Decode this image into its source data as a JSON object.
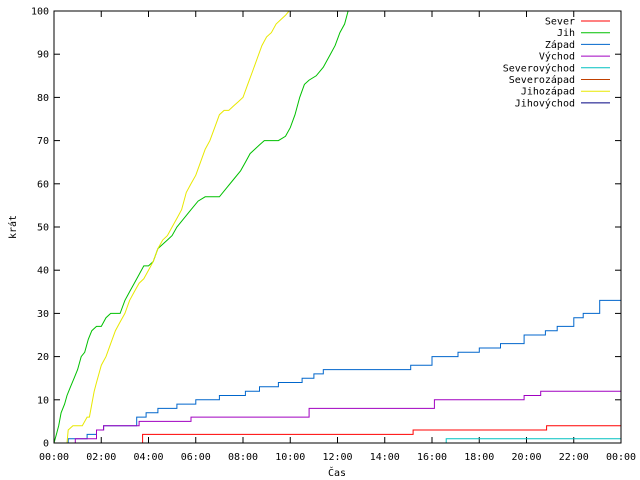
{
  "chart_data": {
    "type": "line",
    "title": "",
    "xlabel": "Čas",
    "ylabel": "krát",
    "xlim": [
      0,
      24
    ],
    "ylim": [
      0,
      100
    ],
    "x_unit": "hours",
    "x_ticks": [
      {
        "value": 0,
        "label": "00:00"
      },
      {
        "value": 2,
        "label": "02:00"
      },
      {
        "value": 4,
        "label": "04:00"
      },
      {
        "value": 6,
        "label": "06:00"
      },
      {
        "value": 8,
        "label": "08:00"
      },
      {
        "value": 10,
        "label": "10:00"
      },
      {
        "value": 12,
        "label": "12:00"
      },
      {
        "value": 14,
        "label": "14:00"
      },
      {
        "value": 16,
        "label": "16:00"
      },
      {
        "value": 18,
        "label": "18:00"
      },
      {
        "value": 20,
        "label": "20:00"
      },
      {
        "value": 22,
        "label": "22:00"
      },
      {
        "value": 24,
        "label": "00:00"
      }
    ],
    "y_ticks": [
      0,
      10,
      20,
      30,
      40,
      50,
      60,
      70,
      80,
      90,
      100
    ],
    "grid": false,
    "legend_position": "top-right",
    "series": [
      {
        "name": "Sever",
        "color": "#ff0000",
        "x": [
          0,
          3.75,
          3.75,
          15.2,
          15.2,
          20.85,
          20.85,
          24
        ],
        "y": [
          0,
          0,
          2,
          2,
          3,
          3,
          4,
          4
        ]
      },
      {
        "name": "Jih",
        "color": "#00c000",
        "x": [
          0,
          0.1,
          0.2,
          0.3,
          0.45,
          0.55,
          0.7,
          0.85,
          1.0,
          1.15,
          1.3,
          1.45,
          1.6,
          1.8,
          2.0,
          2.2,
          2.4,
          2.6,
          2.8,
          3.0,
          3.2,
          3.4,
          3.6,
          3.8,
          4.0,
          4.2,
          4.4,
          4.6,
          4.8,
          5.0,
          5.2,
          5.5,
          5.8,
          6.1,
          6.4,
          6.7,
          7.0,
          7.3,
          7.6,
          7.9,
          8.1,
          8.3,
          8.5,
          8.7,
          8.9,
          9.2,
          9.5,
          9.8,
          10.0,
          10.2,
          10.4,
          10.6,
          10.8,
          11.1,
          11.4,
          11.7,
          11.9,
          12.1,
          12.3,
          12.45
        ],
        "y": [
          0,
          2,
          4,
          7,
          9,
          11,
          13,
          15,
          17,
          20,
          21,
          24,
          26,
          27,
          27,
          29,
          30,
          30,
          30,
          33,
          35,
          37,
          39,
          41,
          41,
          42,
          45,
          46,
          47,
          48,
          50,
          52,
          54,
          56,
          57,
          57,
          57,
          59,
          61,
          63,
          65,
          67,
          68,
          69,
          70,
          70,
          70,
          71,
          73,
          76,
          80,
          83,
          84,
          85,
          87,
          90,
          92,
          95,
          97,
          100
        ]
      },
      {
        "name": "Západ",
        "color": "#0066cc",
        "x": [
          0,
          0.6,
          0.6,
          1.4,
          1.4,
          1.8,
          1.8,
          2.1,
          2.1,
          3.5,
          3.5,
          3.9,
          3.9,
          4.4,
          4.4,
          5.2,
          5.2,
          6.0,
          6.0,
          7.0,
          7.0,
          8.1,
          8.1,
          8.7,
          8.7,
          9.5,
          9.5,
          10.5,
          10.5,
          11.0,
          11.0,
          11.4,
          11.4,
          15.1,
          15.1,
          16.0,
          16.0,
          17.1,
          17.1,
          18.0,
          18.0,
          18.9,
          18.9,
          19.9,
          19.9,
          20.8,
          20.8,
          21.3,
          21.3,
          22.0,
          22.0,
          22.4,
          22.4,
          23.1,
          23.1,
          24
        ],
        "y": [
          0,
          0,
          1,
          1,
          2,
          2,
          3,
          3,
          4,
          4,
          6,
          6,
          7,
          7,
          8,
          8,
          9,
          9,
          10,
          10,
          11,
          11,
          12,
          12,
          13,
          13,
          14,
          14,
          15,
          15,
          16,
          16,
          17,
          17,
          18,
          18,
          20,
          20,
          21,
          21,
          22,
          22,
          23,
          23,
          25,
          25,
          26,
          26,
          27,
          27,
          29,
          29,
          30,
          30,
          33,
          33
        ]
      },
      {
        "name": "Východ",
        "color": "#a000c0",
        "x": [
          0,
          0.9,
          0.9,
          1.8,
          1.8,
          2.1,
          2.1,
          3.6,
          3.6,
          5.8,
          5.8,
          10.8,
          10.8,
          16.1,
          16.1,
          19.9,
          19.9,
          20.6,
          20.6,
          24
        ],
        "y": [
          0,
          0,
          1,
          1,
          3,
          3,
          4,
          4,
          5,
          5,
          6,
          6,
          8,
          8,
          10,
          10,
          11,
          11,
          12,
          12
        ]
      },
      {
        "name": "Severovýchod",
        "color": "#00c0c0",
        "x": [
          0,
          16.6,
          16.6,
          24
        ],
        "y": [
          0,
          0,
          1,
          1
        ]
      },
      {
        "name": "Severozápad",
        "color": "#c04000",
        "x": [],
        "y": []
      },
      {
        "name": "Jihozápad",
        "color": "#e8e800",
        "x": [
          0,
          0.55,
          0.6,
          0.8,
          1.0,
          1.2,
          1.4,
          1.5,
          1.6,
          1.7,
          1.8,
          1.9,
          2.0,
          2.2,
          2.4,
          2.6,
          2.8,
          3.0,
          3.2,
          3.4,
          3.6,
          3.8,
          4.0,
          4.2,
          4.4,
          4.6,
          4.8,
          5.0,
          5.2,
          5.4,
          5.6,
          5.8,
          6.0,
          6.2,
          6.4,
          6.6,
          6.8,
          7.0,
          7.2,
          7.4,
          7.6,
          7.8,
          8.0,
          8.2,
          8.4,
          8.6,
          8.8,
          9.0,
          9.2,
          9.4,
          9.6,
          9.8,
          9.95
        ],
        "y": [
          0,
          0,
          3,
          4,
          4,
          4,
          6,
          6,
          9,
          12,
          14,
          16,
          18,
          20,
          23,
          26,
          28,
          30,
          33,
          35,
          37,
          38,
          40,
          42,
          45,
          47,
          48,
          50,
          52,
          54,
          58,
          60,
          62,
          65,
          68,
          70,
          73,
          76,
          77,
          77,
          78,
          79,
          80,
          83,
          86,
          89,
          92,
          94,
          95,
          97,
          98,
          99,
          100
        ]
      },
      {
        "name": "Jihovýchod",
        "color": "#000080",
        "x": [],
        "y": []
      }
    ]
  }
}
